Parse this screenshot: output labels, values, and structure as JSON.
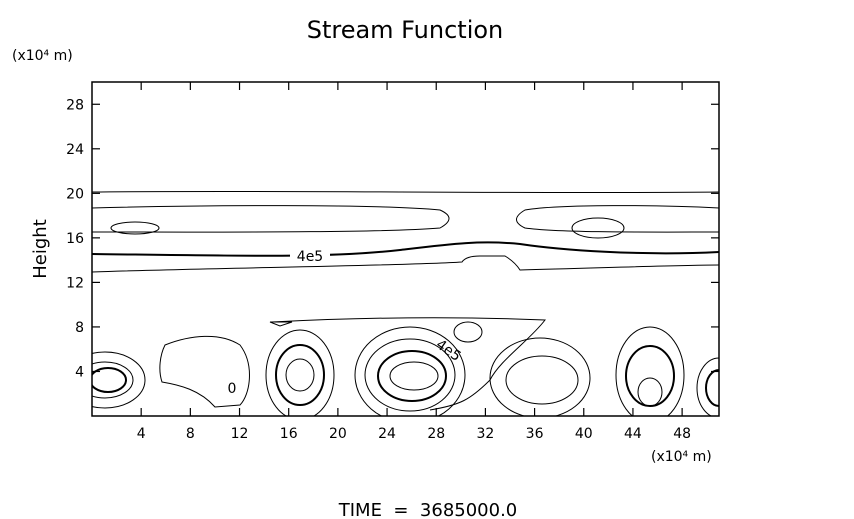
{
  "chart_data": {
    "type": "contour",
    "title": "Stream Function",
    "y_unit": "(x10⁴ m)",
    "x_unit": "(x10⁴ m)",
    "y_label": "Height",
    "xlim": [
      0,
      51
    ],
    "ylim": [
      0,
      30
    ],
    "xticks": [
      4,
      8,
      12,
      16,
      20,
      24,
      28,
      32,
      36,
      40,
      44,
      48
    ],
    "yticks": [
      4,
      8,
      12,
      16,
      20,
      24,
      28
    ],
    "contour_labels": [
      "4e5",
      "4e5",
      "0"
    ],
    "footer": "TIME  =  3685000.0"
  }
}
